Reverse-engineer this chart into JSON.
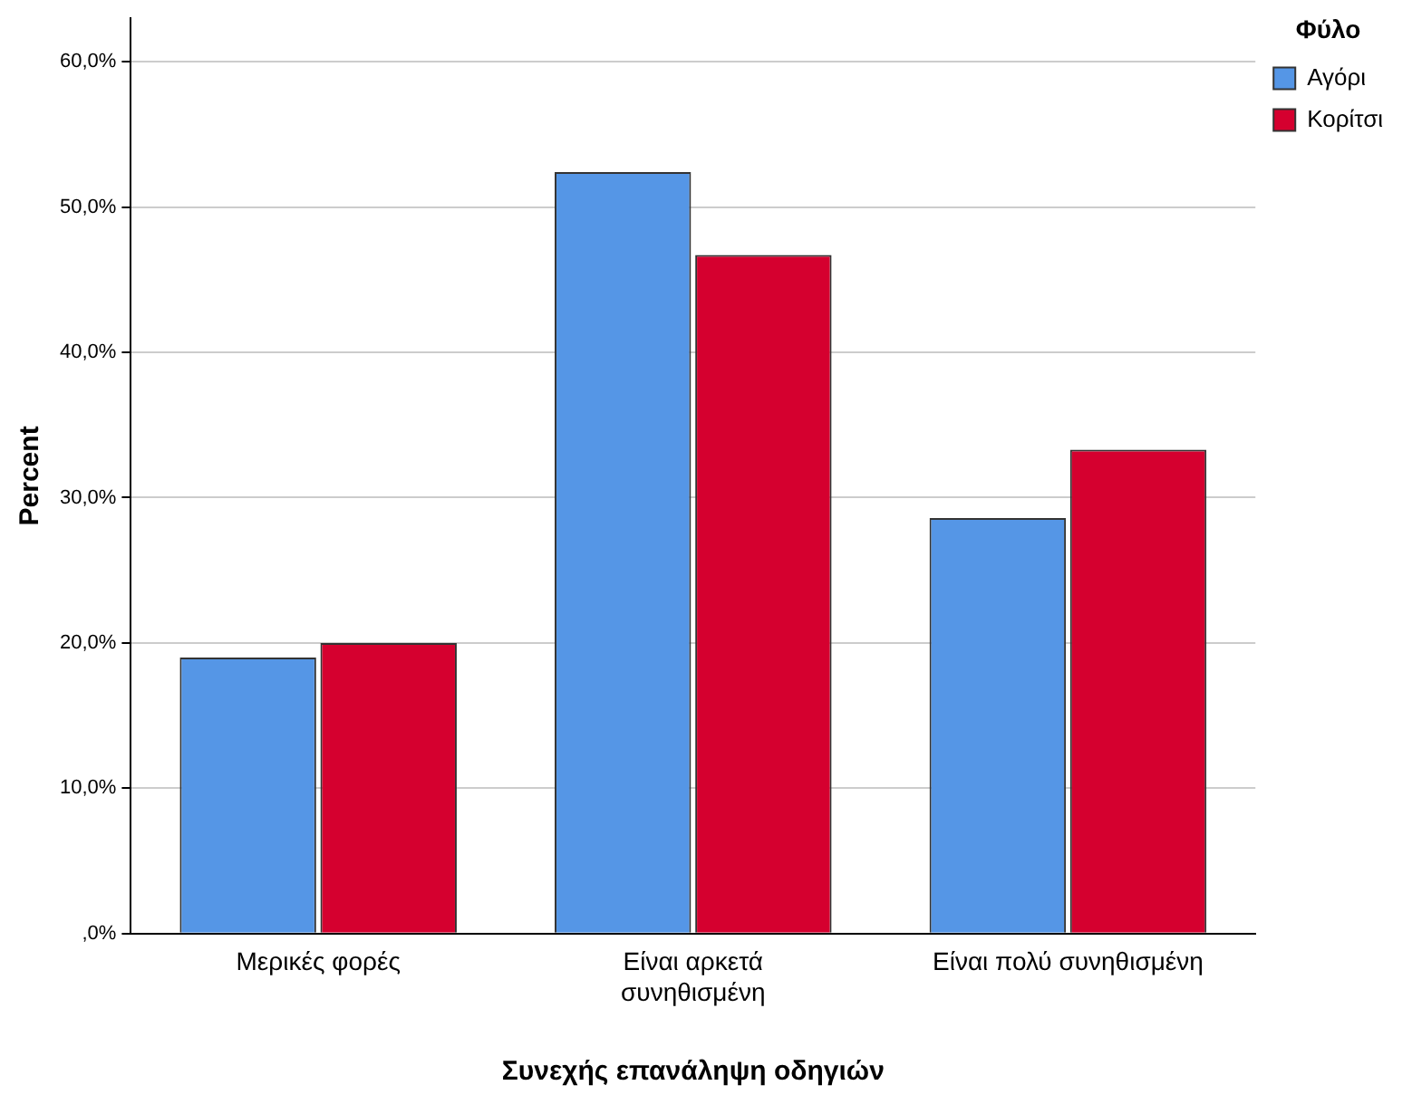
{
  "chart_data": {
    "type": "bar",
    "xlabel": "Συνεχής επανάληψη οδηγιών",
    "ylabel": "Percent",
    "legend_title": "Φύλο",
    "categories": [
      "Μερικές φορές",
      "Είναι αρκετά συνηθισμένη",
      "Είναι πολύ συνηθισμένη"
    ],
    "series": [
      {
        "name": "Αγόρι",
        "color": "#5596e6",
        "values": [
          19.0,
          52.4,
          28.6
        ]
      },
      {
        "name": "Κορίτσι",
        "color": "#d5002f",
        "values": [
          20.0,
          46.7,
          33.3
        ]
      }
    ],
    "ylim": [
      0,
      63
    ],
    "yticks": [
      {
        "value": 0,
        "label": ",0%"
      },
      {
        "value": 10,
        "label": "10,0%"
      },
      {
        "value": 20,
        "label": "20,0%"
      },
      {
        "value": 30,
        "label": "30,0%"
      },
      {
        "value": 40,
        "label": "40,0%"
      },
      {
        "value": 50,
        "label": "50,0%"
      },
      {
        "value": 60,
        "label": "60,0%"
      }
    ],
    "grid": "y",
    "legend": "top right"
  }
}
